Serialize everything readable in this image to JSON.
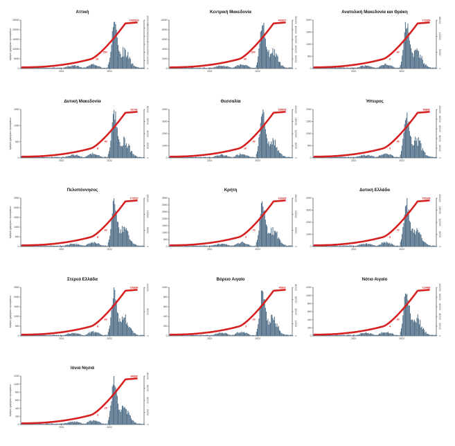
{
  "colors": {
    "bars": "#4c6b85",
    "line": "#d62020",
    "axis": "#222222"
  },
  "chart_data": [
    {
      "type": "bar",
      "title": "Αττική",
      "ylabel": "Αριθμός ημερήσιων κρουσμάτων",
      "x_ticks": [
        "2021",
        "2022"
      ],
      "y_ticks": [
        "0",
        "5000",
        "10000",
        "15000",
        "20000",
        "25000"
      ],
      "y2_ticks": [
        "0",
        "100000",
        "200000",
        "400000",
        "600000",
        "800000",
        "1000000"
      ],
      "ann_mid": "250",
      "ann_low": "26",
      "ann_final": "1330818"
    },
    {
      "type": "bar",
      "title": "Κεντρική Μακεδονία",
      "ylabel": "",
      "x_ticks": [
        "2021",
        "2022"
      ],
      "y_ticks": [
        "0",
        "2000",
        "4000",
        "6000",
        "8000",
        "10000"
      ],
      "y2_ticks": [
        "0",
        "100000",
        "200000",
        "300000",
        "400000",
        "500000"
      ],
      "ann_mid": "300",
      "ann_low": "60",
      "ann_final": "492827"
    },
    {
      "type": "bar",
      "title": "Ανατολική Μακεδονία και Θράκη",
      "ylabel": "",
      "x_ticks": [
        "2021",
        "2022"
      ],
      "y_ticks": [
        "0",
        "500",
        "1000",
        "1500",
        "2000"
      ],
      "y2_ticks": [
        "0",
        "50000",
        "100000",
        "150000"
      ],
      "ann_mid": "60",
      "ann_low": "6",
      "ann_final": "171656"
    },
    {
      "type": "bar",
      "title": "Δυτική Μακεδονία",
      "ylabel": "Αριθμός ημερήσιων κρουσμάτων",
      "x_ticks": [
        "2021",
        "2022"
      ],
      "y_ticks": [
        "0",
        "500",
        "1000",
        "1500"
      ],
      "y2_ticks": [
        "0",
        "20000",
        "40000",
        "60000",
        "80000"
      ],
      "ann_mid": "40",
      "ann_low": "8",
      "ann_final": "92746"
    },
    {
      "type": "bar",
      "title": "Θεσσαλία",
      "ylabel": "",
      "x_ticks": [
        "2021",
        "2022"
      ],
      "y_ticks": [
        "0",
        "1000",
        "2000",
        "3000",
        "4000"
      ],
      "y2_ticks": [
        "0",
        "50000",
        "100000",
        "150000",
        "200000"
      ],
      "ann_mid": "90",
      "ann_low": "10",
      "ann_final": "265653"
    },
    {
      "type": "bar",
      "title": "Ήπειρος",
      "ylabel": "",
      "x_ticks": [
        "2021",
        "2022"
      ],
      "y_ticks": [
        "0",
        "500",
        "1000",
        "1500",
        "2000"
      ],
      "y2_ticks": [
        "0",
        "20000",
        "40000",
        "60000",
        "80000",
        "100000"
      ],
      "ann_mid": "45",
      "ann_low": "5",
      "ann_final": "99898"
    },
    {
      "type": "bar",
      "title": "Πελοπόννησος",
      "ylabel": "Αριθμός ημερήσιων κρουσμάτων",
      "x_ticks": [
        "2021",
        "2022"
      ],
      "y_ticks": [
        "0",
        "500",
        "1000",
        "1500",
        "2000",
        "2500"
      ],
      "y2_ticks": [
        "0",
        "50000",
        "100000",
        "150000"
      ],
      "ann_mid": "60",
      "ann_low": "8",
      "ann_final": "173510"
    },
    {
      "type": "bar",
      "title": "Κρήτη",
      "ylabel": "",
      "x_ticks": [
        "2021",
        "2022"
      ],
      "y_ticks": [
        "0",
        "500",
        "1000",
        "1500",
        "2000",
        "2500",
        "3000",
        "3500"
      ],
      "y2_ticks": [
        "0",
        "50000",
        "100000",
        "150000"
      ],
      "ann_mid": "70",
      "ann_low": "9",
      "ann_final": "162665"
    },
    {
      "type": "bar",
      "title": "Δυτική Ελλάδα",
      "ylabel": "",
      "x_ticks": [
        "2021",
        "2022"
      ],
      "y_ticks": [
        "0",
        "1000",
        "2000",
        "3000",
        "4000"
      ],
      "y2_ticks": [
        "0",
        "50000",
        "100000",
        "150000",
        "200000"
      ],
      "ann_mid": "70",
      "ann_low": "8",
      "ann_final": "203349"
    },
    {
      "type": "bar",
      "title": "Στερεά Ελλάδα",
      "ylabel": "Αριθμός ημερήσιων κρουσμάτων",
      "x_ticks": [
        "2021",
        "2022"
      ],
      "y_ticks": [
        "0",
        "500",
        "1000",
        "1500",
        "2000",
        "2500"
      ],
      "y2_ticks": [
        "0",
        "50000",
        "100000"
      ],
      "ann_mid": "60",
      "ann_low": "8",
      "ann_final": "150896"
    },
    {
      "type": "bar",
      "title": "Βόρειο Αιγαίο",
      "ylabel": "",
      "x_ticks": [
        "2021",
        "2022"
      ],
      "y_ticks": [
        "0",
        "200",
        "400",
        "600",
        "800",
        "1000"
      ],
      "y2_ticks": [
        "0",
        "10000",
        "20000",
        "30000",
        "40000"
      ],
      "ann_mid": "20",
      "ann_low": "3",
      "ann_final": "45663"
    },
    {
      "type": "bar",
      "title": "Νότιο Αιγαίο",
      "ylabel": "",
      "x_ticks": [
        "2021",
        "2022"
      ],
      "y_ticks": [
        "0",
        "200",
        "400",
        "600",
        "800",
        "1000",
        "1200"
      ],
      "y2_ticks": [
        "0",
        "20000",
        "40000",
        "60000",
        "80000",
        "100000"
      ],
      "ann_mid": "30",
      "ann_low": "4",
      "ann_final": "119488"
    },
    {
      "type": "bar",
      "title": "Ιόνια Νησιά",
      "ylabel": "Αριθμός ημερήσιων κρουσμάτων",
      "x_ticks": [
        "2021",
        "2022"
      ],
      "y_ticks": [
        "0",
        "200",
        "400",
        "600",
        "800",
        "1000",
        "1200"
      ],
      "y2_ticks": [
        "0",
        "20000",
        "40000",
        "60000",
        "80000"
      ],
      "ann_mid": "25",
      "ann_low": "4",
      "ann_final": "84858"
    }
  ]
}
